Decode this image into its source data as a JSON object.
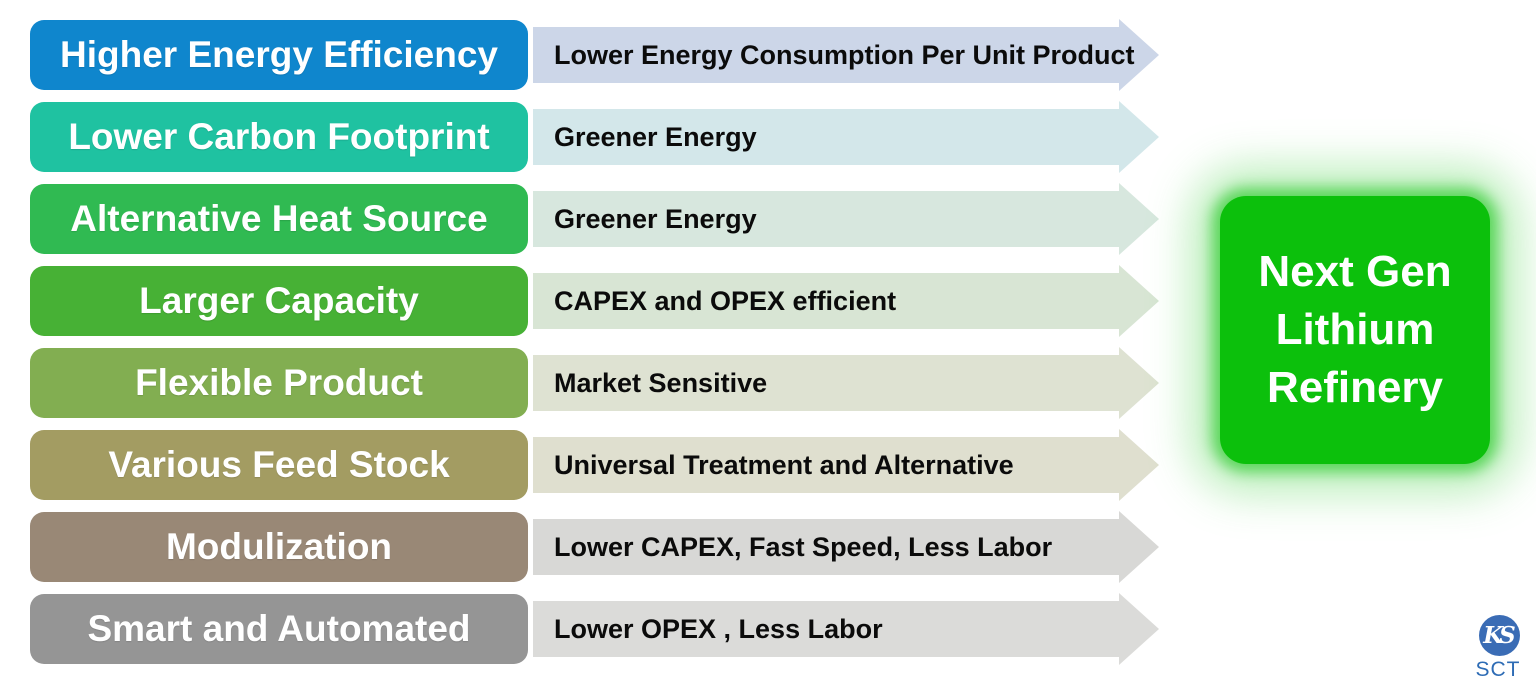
{
  "diagram": {
    "rows": [
      {
        "label": "Higher Energy Efficiency",
        "description": "Lower Energy Consumption Per Unit Product",
        "label_color": "#0f86cd",
        "arrow_color": "#ccd6e8"
      },
      {
        "label": "Lower Carbon Footprint",
        "description": "Greener Energy",
        "label_color": "#1fc2a1",
        "arrow_color": "#d3e7ea"
      },
      {
        "label": "Alternative Heat Source",
        "description": "Greener Energy",
        "label_color": "#30ba52",
        "arrow_color": "#d7e7de"
      },
      {
        "label": "Larger Capacity",
        "description": "CAPEX and OPEX efficient",
        "label_color": "#47b135",
        "arrow_color": "#d8e5d4"
      },
      {
        "label": "Flexible Product",
        "description": "Market Sensitive",
        "label_color": "#82ae51",
        "arrow_color": "#dee2d2"
      },
      {
        "label": "Various Feed Stock",
        "description": "Universal Treatment and Alternative",
        "label_color": "#a39c62",
        "arrow_color": "#dfdfcf"
      },
      {
        "label": "Modulization",
        "description": "Lower CAPEX, Fast Speed, Less Labor",
        "label_color": "#998876",
        "arrow_color": "#d8d8d6"
      },
      {
        "label": "Smart and Automated",
        "description": "Lower OPEX , Less Labor",
        "label_color": "#959595",
        "arrow_color": "#dbdbd9"
      }
    ],
    "result_box": {
      "lines": [
        "Next Gen",
        "Lithium",
        "Refinery"
      ],
      "color": "#0cc00c",
      "text_color": "#ffffff"
    },
    "logo": {
      "monogram": "KS",
      "text": "SCT",
      "circle_color": "#3a6cb5",
      "text_color": "#2e6cb5"
    }
  }
}
